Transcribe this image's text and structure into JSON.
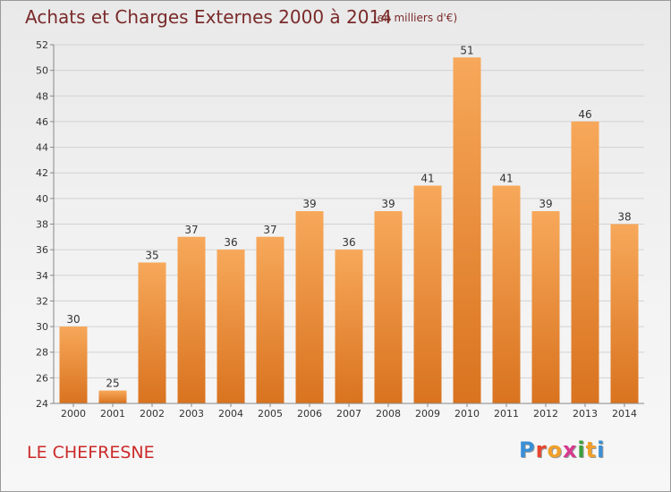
{
  "header": {
    "title": "Achats et Charges Externes 2000 à 2014",
    "unit": "(en milliers d'€)"
  },
  "footer": {
    "commune": "LE CHEFRESNE",
    "logo_letters": [
      "P",
      "r",
      "o",
      "x",
      "i",
      "t",
      "i"
    ],
    "logo_colors": [
      "#3a8fd6",
      "#e8442e",
      "#f0a02a",
      "#d63a8f",
      "#3aa03a",
      "#f0a02a",
      "#3a8fd6"
    ]
  },
  "colors": {
    "bar": "#f0923a",
    "bar_light": "#f7a85a",
    "bar_dark": "#d9731f",
    "grid": "#d2d2d2",
    "axis": "#888888"
  },
  "chart_data": {
    "type": "bar",
    "title": "Achats et Charges Externes 2000 à 2014",
    "xlabel": "",
    "ylabel": "",
    "categories": [
      "2000",
      "2001",
      "2002",
      "2003",
      "2004",
      "2005",
      "2006",
      "2007",
      "2008",
      "2009",
      "2010",
      "2011",
      "2012",
      "2013",
      "2014"
    ],
    "values": [
      30,
      25,
      35,
      37,
      36,
      37,
      39,
      36,
      39,
      41,
      51,
      41,
      39,
      46,
      38
    ],
    "ylim": [
      24,
      52
    ],
    "yticks": [
      24,
      26,
      28,
      30,
      32,
      34,
      36,
      38,
      40,
      42,
      44,
      46,
      48,
      50,
      52
    ],
    "grid": true,
    "data_labels": true
  }
}
